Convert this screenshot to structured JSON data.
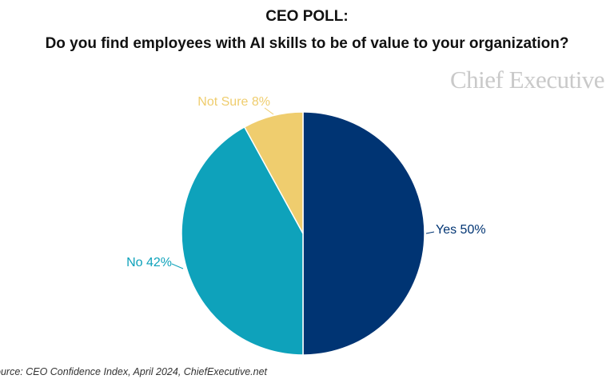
{
  "chart_data": {
    "type": "pie",
    "title": "CEO POLL:",
    "subtitle": "Do you find employees with AI skills to be of value to your organization?",
    "slices": [
      {
        "label": "Yes",
        "value": 50,
        "display": "Yes 50%",
        "color": "#003473"
      },
      {
        "label": "No",
        "value": 42,
        "display": "No 42%",
        "color": "#0ea2bb"
      },
      {
        "label": "Not Sure",
        "value": 8,
        "display": "Not Sure 8%",
        "color": "#efcd6e"
      }
    ],
    "source": "ource: CEO Confidence Index, April 2024, ChiefExecutive.net"
  },
  "brand": {
    "logo": "Chief Executive"
  }
}
